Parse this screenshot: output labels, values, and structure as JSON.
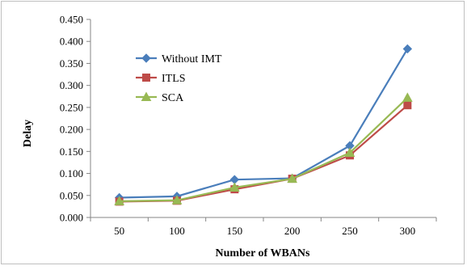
{
  "chart_data": {
    "type": "line",
    "title": "",
    "xlabel": "Number of WBANs",
    "ylabel": "Delay",
    "categories": [
      "50",
      "100",
      "150",
      "200",
      "250",
      "300"
    ],
    "ylim": [
      0,
      0.45
    ],
    "yticks": [
      "0.000",
      "0.050",
      "0.100",
      "0.150",
      "0.200",
      "0.250",
      "0.300",
      "0.350",
      "0.400",
      "0.450"
    ],
    "grid": false,
    "legend_position": "top-left",
    "series": [
      {
        "name": "Without IMT",
        "color": "#4a7ebb",
        "marker": "diamond",
        "values": [
          0.045,
          0.048,
          0.086,
          0.089,
          0.163,
          0.383
        ]
      },
      {
        "name": "ITLS",
        "color": "#be4b48",
        "marker": "square",
        "values": [
          0.036,
          0.038,
          0.064,
          0.088,
          0.141,
          0.255
        ]
      },
      {
        "name": "SCA",
        "color": "#98b954",
        "marker": "triangle",
        "values": [
          0.037,
          0.039,
          0.068,
          0.088,
          0.147,
          0.272
        ]
      }
    ]
  }
}
